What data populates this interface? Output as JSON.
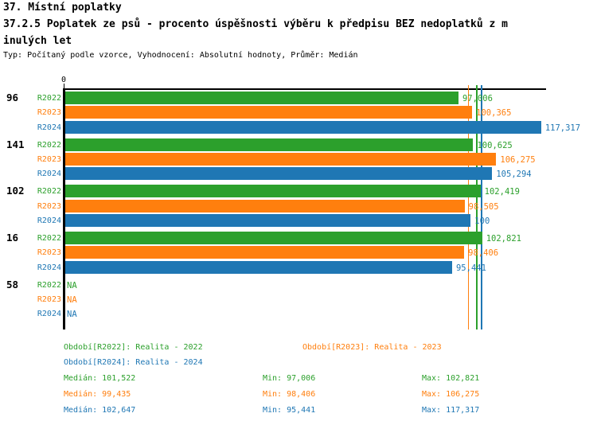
{
  "header": {
    "title": "37. Místní poplatky",
    "subtitle_line1": "37.2.5 Poplatek ze psů - procento úspěšnosti výběru k předpisu BEZ nedoplatků z m",
    "subtitle_line2": "inulých let",
    "meta": "Typ: Počítaný podle vzorce, Vyhodnocení: Absolutní hodnoty, Průměr: Medián"
  },
  "colors": {
    "r2022": "#2ca02c",
    "r2023": "#ff7f0e",
    "r2024": "#1f77b4",
    "axis": "#000000"
  },
  "chart_data": {
    "type": "bar",
    "orientation": "horizontal",
    "title": "37.2.5 Poplatek ze psů - procento úspěšnosti výběru k předpisu BEZ nedoplatků z minulých let",
    "x_origin_label": "0",
    "xlim": [
      0,
      118.5
    ],
    "grid": false,
    "categories": [
      "96",
      "141",
      "102",
      "16",
      "58"
    ],
    "series": [
      {
        "name": "R2022",
        "color": "#2ca02c",
        "values": [
          97.006,
          100.625,
          102.419,
          102.821,
          null
        ],
        "labels": [
          "97,006",
          "100,625",
          "102,419",
          "102,821",
          "NA"
        ],
        "median": 101.522,
        "min": 97.006,
        "max": 102.821
      },
      {
        "name": "R2023",
        "color": "#ff7f0e",
        "values": [
          100.365,
          106.275,
          98.505,
          98.406,
          null
        ],
        "labels": [
          "100,365",
          "106,275",
          "98,505",
          "98,406",
          "NA"
        ],
        "median": 99.435,
        "min": 98.406,
        "max": 106.275
      },
      {
        "name": "R2024",
        "color": "#1f77b4",
        "values": [
          117.317,
          105.294,
          100,
          95.441,
          null
        ],
        "labels": [
          "117,317",
          "105,294",
          "100",
          "95,441",
          "NA"
        ],
        "median": 102.647,
        "min": 95.441,
        "max": 117.317
      }
    ],
    "median_lines": [
      {
        "series": "R2022",
        "value": 101.522,
        "color": "#2ca02c"
      },
      {
        "series": "R2023",
        "value": 99.435,
        "color": "#ff7f0e"
      },
      {
        "series": "R2024",
        "value": 102.647,
        "color": "#1f77b4"
      }
    ]
  },
  "legend": {
    "period_r2022": "Období[R2022]: Realita - 2022",
    "period_r2023": "Období[R2023]: Realita - 2023",
    "period_r2024": "Období[R2024]: Realita - 2024"
  },
  "stats": {
    "rows": [
      {
        "series": "R2022",
        "median": "Medián: 101,522",
        "min": "Min: 97,006",
        "max": "Max: 102,821"
      },
      {
        "series": "R2023",
        "median": "Medián: 99,435",
        "min": "Min: 98,406",
        "max": "Max: 106,275"
      },
      {
        "series": "R2024",
        "median": "Medián: 102,647",
        "min": "Min: 95,441",
        "max": "Max: 117,317"
      }
    ]
  }
}
